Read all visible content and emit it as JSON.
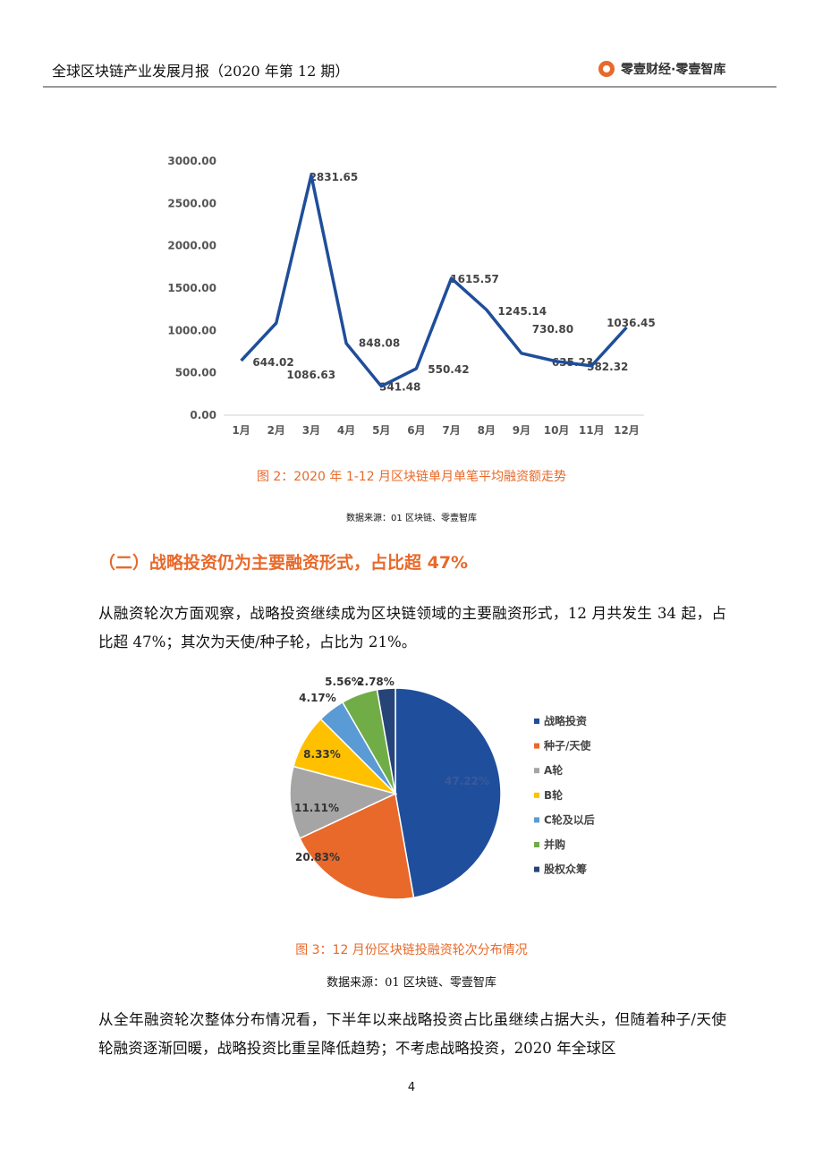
{
  "header": {
    "title": "全球区块链产业发展月报（2020 年第 12 期）",
    "brand": "零壹财经·零壹智库"
  },
  "chart_data": [
    {
      "type": "line",
      "categories": [
        "1月",
        "2月",
        "3月",
        "4月",
        "5月",
        "6月",
        "7月",
        "8月",
        "9月",
        "10月",
        "11月",
        "12月"
      ],
      "values": [
        644.02,
        1086.63,
        2831.65,
        848.08,
        341.48,
        550.42,
        1615.57,
        1245.14,
        730.8,
        635.23,
        582.32,
        1036.45
      ],
      "value_labels": [
        "644.02",
        "1086.63",
        "2831.65",
        "848.08",
        "341.48",
        "550.42",
        "1615.57",
        "1245.14",
        "730.80",
        "635.23",
        "582.32",
        "1036.45"
      ],
      "color": "#1f4e99",
      "ylim": [
        0,
        3000
      ],
      "yticks": [
        {
          "value": 0,
          "label": "0.00"
        },
        {
          "value": 500,
          "label": "500.00"
        },
        {
          "value": 1000,
          "label": "1000.00"
        },
        {
          "value": 1500,
          "label": "1500.00"
        },
        {
          "value": 2000,
          "label": "2000.00"
        },
        {
          "value": 2500,
          "label": "2500.00"
        },
        {
          "value": 3000,
          "label": "3000.00"
        }
      ],
      "grid": false
    },
    {
      "type": "pie",
      "categories": [
        "战略投资",
        "种子/天使",
        "A轮",
        "B轮",
        "C轮及以后",
        "并购",
        "股权众筹"
      ],
      "values": [
        47.22,
        20.83,
        11.11,
        8.33,
        4.17,
        5.56,
        2.78
      ],
      "value_labels": [
        "47.22%",
        "20.83%",
        "11.11%",
        "8.33%",
        "4.17%",
        "5.56%",
        "2.78%"
      ],
      "colors": [
        "#1f4e9c",
        "#e8692a",
        "#a5a5a5",
        "#ffc000",
        "#5b9bd5",
        "#70ad47",
        "#264478"
      ],
      "legend": "right"
    }
  ],
  "figures": [
    {
      "caption": "图 2：2020 年 1-12 月区块链单月单笔平均融资额走势",
      "source": "数据来源：01 区块链、零壹智库"
    },
    {
      "caption": "图 3：12 月份区块链投融资轮次分布情况",
      "source": "数据来源：01 区块链、零壹智库"
    }
  ],
  "section_heading": "（二）战略投资仍为主要融资形式，占比超 47%",
  "paragraphs": [
    "从融资轮次方面观察，战略投资继续成为区块链领域的主要融资形式，12 月共发生 34 起，占比超 47%；其次为天使/种子轮，占比为 21%。",
    "从全年融资轮次整体分布情况看，下半年以来战略投资占比虽继续占据大头，但随着种子/天使轮融资逐渐回暖，战略投资比重呈降低趋势；不考虑战略投资，2020 年全球区"
  ],
  "page_number": "4"
}
